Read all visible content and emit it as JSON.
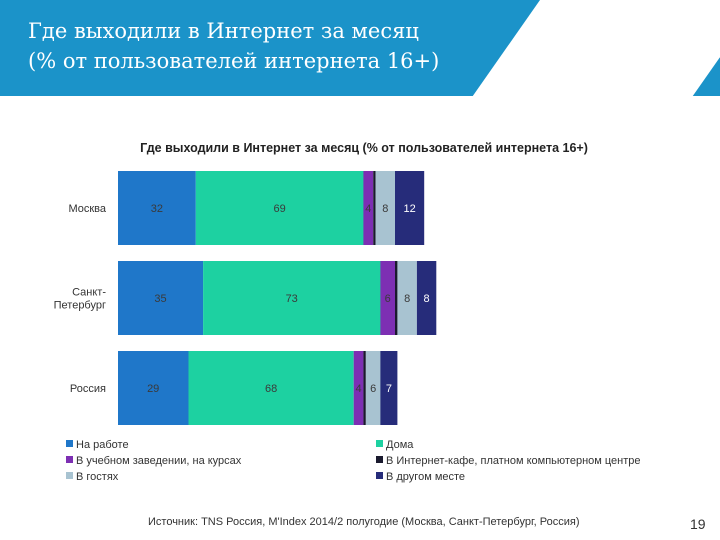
{
  "slide": {
    "title_line1": "Где выходили в Интернет за месяц",
    "title_line2": "(% от пользователей интернета 16+)",
    "source": "Источник: TNS Россия, M'Index 2014/2 полугодие (Москва, Санкт-Петербург, Россия)",
    "page_number": "19"
  },
  "colors": {
    "header": "#1b93c9",
    "series": [
      "#1f77c9",
      "#1dd1a1",
      "#7d2fb3",
      "#1a1a2e",
      "#a8c3d1",
      "#262c7a"
    ]
  },
  "chart_data": {
    "type": "bar",
    "orientation": "horizontal",
    "stacked": true,
    "title": "Где выходили в Интернет за месяц (% от пользователей интернета 16+)",
    "categories": [
      "Москва",
      "Санкт-Петербург",
      "Россия"
    ],
    "category_labels": [
      [
        "Москва"
      ],
      [
        "Санкт-",
        "Петербург"
      ],
      [
        "Россия"
      ]
    ],
    "series": [
      {
        "name": "На работе",
        "values": [
          32,
          35,
          29
        ]
      },
      {
        "name": "Дома",
        "values": [
          69,
          73,
          68
        ]
      },
      {
        "name": "В учебном заведении, на курсах",
        "values": [
          4,
          6,
          4
        ]
      },
      {
        "name": "В Интернет-кафе, платном компьютерном центре",
        "values": [
          1,
          1,
          1
        ]
      },
      {
        "name": "В гостях",
        "values": [
          8,
          8,
          6
        ]
      },
      {
        "name": "В другом месте",
        "values": [
          12,
          8,
          7
        ]
      }
    ],
    "value_labels": [
      [
        "32",
        "69",
        "4",
        "",
        "8",
        "12"
      ],
      [
        "35",
        "73",
        "6",
        "",
        "8",
        "8"
      ],
      [
        "29",
        "68",
        "4",
        "",
        "6",
        "7"
      ]
    ],
    "legend_position": "bottom",
    "grid": false
  }
}
